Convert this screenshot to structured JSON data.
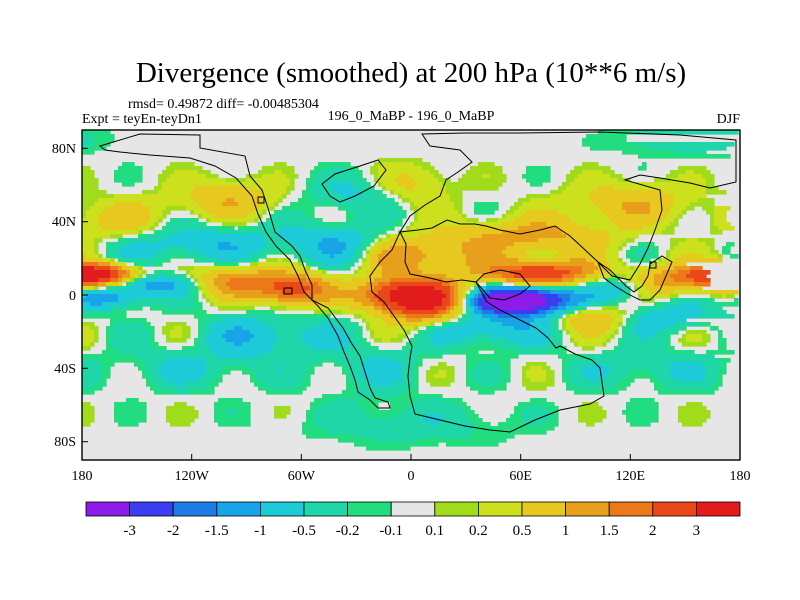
{
  "chart_data": {
    "type": "heatmap",
    "title": "Divergence (smoothed) at 200 hPa (10**6 m/s)",
    "stats_text": "rmsd= 0.49872 diff= -0.00485304",
    "left_label": "Expt = teyEn-teyDn1",
    "center_label": "196_0_MaBP - 196_0_MaBP",
    "right_label": "DJF",
    "xlim": [
      -180,
      180
    ],
    "ylim": [
      -90,
      90
    ],
    "x_ticks": [
      {
        "value": -180,
        "label": "180"
      },
      {
        "value": -120,
        "label": "120W"
      },
      {
        "value": -60,
        "label": "60W"
      },
      {
        "value": 0,
        "label": "0"
      },
      {
        "value": 60,
        "label": "60E"
      },
      {
        "value": 120,
        "label": "120E"
      },
      {
        "value": 180,
        "label": "180"
      }
    ],
    "y_ticks": [
      {
        "value": 80,
        "label": "80N"
      },
      {
        "value": 40,
        "label": "40N"
      },
      {
        "value": 0,
        "label": "0"
      },
      {
        "value": -40,
        "label": "40S"
      },
      {
        "value": -80,
        "label": "80S"
      }
    ],
    "colorbar": {
      "labels": [
        "-3",
        "-2",
        "-1.5",
        "-1",
        "-0.5",
        "-0.2",
        "-0.1",
        "0.1",
        "0.2",
        "0.5",
        "1",
        "1.5",
        "2",
        "3"
      ],
      "colors": [
        "#8c1de8",
        "#3c3cf0",
        "#1c7ce6",
        "#18a4e8",
        "#1ccad8",
        "#1ed6a8",
        "#22dc80",
        "#e6e6e6",
        "#a0dc1c",
        "#cce01e",
        "#e6c81e",
        "#e8a01c",
        "#ec781a",
        "#ea4818",
        "#e21c1c"
      ]
    },
    "features": [
      {
        "x": 0,
        "y": 0,
        "a": 3.9,
        "sx": 18,
        "sy": 6
      },
      {
        "x": 8,
        "y": -8,
        "a": 1.5,
        "sx": 14,
        "sy": 6
      },
      {
        "x": 10,
        "y": 22,
        "a": 1.1,
        "sx": 20,
        "sy": 7
      },
      {
        "x": -10,
        "y": 20,
        "a": 0.7,
        "sx": 12,
        "sy": 10
      },
      {
        "x": -65,
        "y": 3,
        "a": 2.4,
        "sx": 13,
        "sy": 6
      },
      {
        "x": -95,
        "y": 8,
        "a": 1.4,
        "sx": 18,
        "sy": 6
      },
      {
        "x": -145,
        "y": 6,
        "a": -1.4,
        "sx": 18,
        "sy": 4
      },
      {
        "x": -170,
        "y": 11,
        "a": 2.6,
        "sx": 14,
        "sy": 4
      },
      {
        "x": 175,
        "y": 11,
        "a": 2.6,
        "sx": 14,
        "sy": 4
      },
      {
        "x": -165,
        "y": -2,
        "a": -1.3,
        "sx": 14,
        "sy": 4
      },
      {
        "x": 60,
        "y": -3,
        "a": -4.8,
        "sx": 18,
        "sy": 5
      },
      {
        "x": 70,
        "y": 12,
        "a": 2.6,
        "sx": 22,
        "sy": 5
      },
      {
        "x": 65,
        "y": 32,
        "a": 1.2,
        "sx": 30,
        "sy": 7
      },
      {
        "x": 115,
        "y": 5,
        "a": -1.3,
        "sx": 15,
        "sy": 6
      },
      {
        "x": 145,
        "y": 8,
        "a": 1.6,
        "sx": 25,
        "sy": 6
      },
      {
        "x": 100,
        "y": -12,
        "a": 1.0,
        "sx": 15,
        "sy": 6
      },
      {
        "x": 140,
        "y": -12,
        "a": -0.8,
        "sx": 20,
        "sy": 6
      },
      {
        "x": 45,
        "y": -18,
        "a": -1.1,
        "sx": 20,
        "sy": 7
      },
      {
        "x": -120,
        "y": 28,
        "a": -0.9,
        "sx": 30,
        "sy": 8
      },
      {
        "x": -40,
        "y": 28,
        "a": -0.9,
        "sx": 25,
        "sy": 8
      },
      {
        "x": -100,
        "y": 52,
        "a": 0.9,
        "sx": 20,
        "sy": 8
      },
      {
        "x": -30,
        "y": 55,
        "a": -0.6,
        "sx": 20,
        "sy": 8
      },
      {
        "x": 0,
        "y": 60,
        "a": 0.7,
        "sx": 15,
        "sy": 8
      },
      {
        "x": 120,
        "y": 50,
        "a": 0.9,
        "sx": 25,
        "sy": 8
      },
      {
        "x": -160,
        "y": 40,
        "a": 0.8,
        "sx": 20,
        "sy": 8
      },
      {
        "x": -80,
        "y": -22,
        "a": -0.9,
        "sx": 25,
        "sy": 8
      },
      {
        "x": -20,
        "y": -40,
        "a": -0.5,
        "sx": 20,
        "sy": 10
      },
      {
        "x": -120,
        "y": -40,
        "a": -0.5,
        "sx": 30,
        "sy": 8
      },
      {
        "x": 130,
        "y": -40,
        "a": -0.5,
        "sx": 30,
        "sy": 8
      },
      {
        "x": 0,
        "y": -70,
        "a": -0.4,
        "sx": 40,
        "sy": 8
      },
      {
        "x": 150,
        "y": 85,
        "a": -0.4,
        "sx": 30,
        "sy": 6
      }
    ]
  }
}
